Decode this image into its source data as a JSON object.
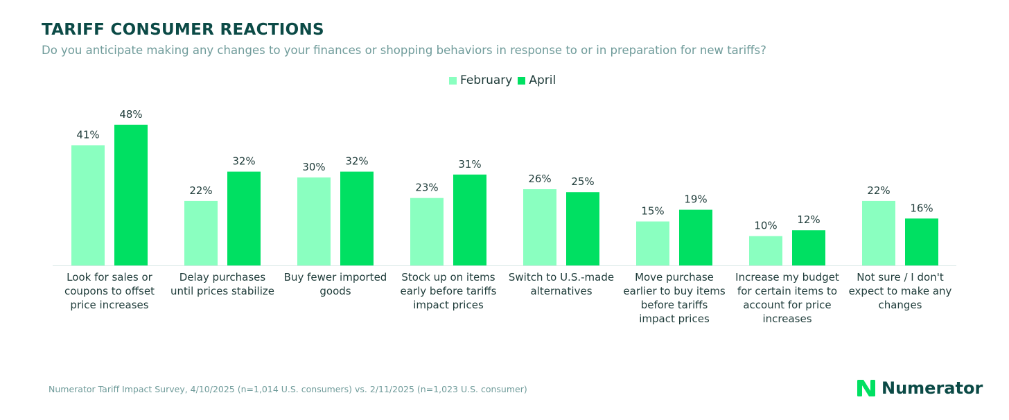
{
  "header": {
    "title": "TARIFF CONSUMER REACTIONS",
    "subtitle": "Do you anticipate making any changes to your finances or shopping behaviors in response to or in preparation for new tariffs?"
  },
  "chart_data": {
    "type": "bar",
    "title": "TARIFF CONSUMER REACTIONS",
    "subtitle": "Do you anticipate making any changes to your finances or shopping behaviors in response to or in preparation for new tariffs?",
    "categories": [
      [
        "Look for sales or",
        "coupons to offset",
        "price increases"
      ],
      [
        "Delay purchases",
        "until prices stabilize"
      ],
      [
        "Buy fewer imported",
        "goods"
      ],
      [
        "Stock up on items",
        "early before tariffs",
        "impact prices"
      ],
      [
        "Switch to U.S.-made",
        "alternatives"
      ],
      [
        "Move purchase",
        "earlier to buy items",
        "before tariffs",
        "impact prices"
      ],
      [
        "Increase my budget",
        "for certain items to",
        "account for price",
        "increases"
      ],
      [
        "Not sure / I don't",
        "expect to make any",
        "changes"
      ]
    ],
    "series": [
      {
        "name": "February",
        "color": "#8affc0",
        "values": [
          41,
          22,
          30,
          23,
          26,
          15,
          10,
          22
        ]
      },
      {
        "name": "April",
        "color": "#00e062",
        "values": [
          48,
          32,
          32,
          31,
          25,
          19,
          12,
          16
        ]
      }
    ],
    "value_format": "{v}%",
    "ylim": [
      0,
      52
    ],
    "grid": false,
    "legend_position": "top-center"
  },
  "footer": {
    "source": "Numerator Tariff Impact Survey, 4/10/2025 (n=1,014 U.S. consumers) vs. 2/11/2025 (n=1,023 U.S. consumer)"
  },
  "logo": {
    "icon": "numerator-n-icon",
    "text": "Numerator",
    "color": "#00e062"
  }
}
